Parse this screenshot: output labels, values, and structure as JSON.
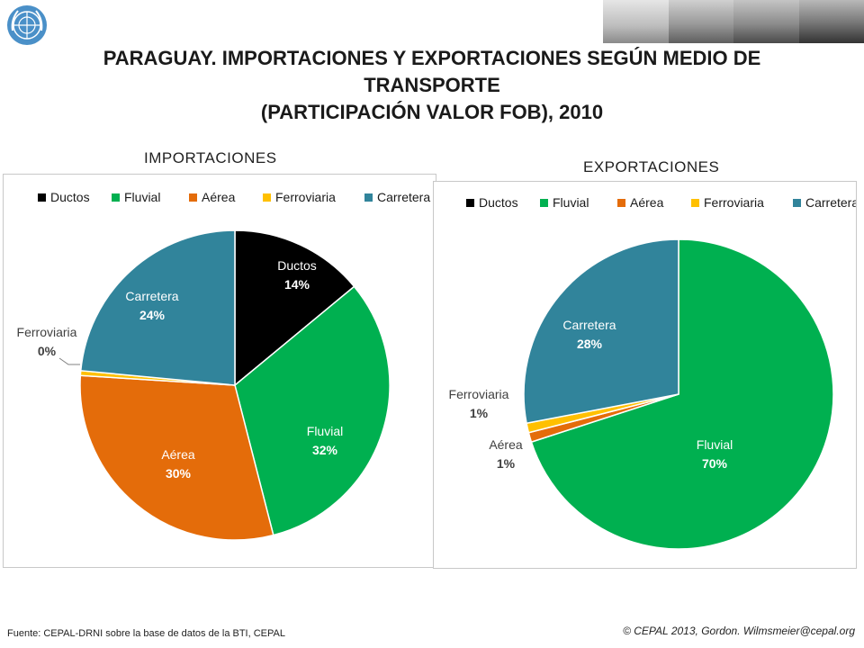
{
  "header": {
    "title_line1": "PARAGUAY. IMPORTACIONES  Y EXPORTACIONES SEGÚN MEDIO DE",
    "title_line2": "TRANSPORTE",
    "title_line3": "(PARTICIPACIÓN VALOR FOB), 2010"
  },
  "colors": {
    "Ductos": "#000000",
    "Fluvial": "#00b050",
    "Aérea": "#e46c0a",
    "Ferroviaria": "#ffc000",
    "Carretera": "#31849b"
  },
  "chart_data": [
    {
      "type": "pie",
      "title": "IMPORTACIONES",
      "legend_position": "top",
      "categories": [
        "Ductos",
        "Fluvial",
        "Aérea",
        "Ferroviaria",
        "Carretera"
      ],
      "values": [
        14,
        32,
        30,
        0.5,
        23.5
      ],
      "data_labels": [
        "14%",
        "32%",
        "30%",
        "0%",
        "24%"
      ]
    },
    {
      "type": "pie",
      "title": "EXPORTACIONES",
      "legend_position": "top",
      "categories": [
        "Ductos",
        "Fluvial",
        "Aérea",
        "Ferroviaria",
        "Carretera"
      ],
      "values": [
        0,
        70,
        1,
        1,
        28
      ],
      "data_labels": [
        "",
        "70%",
        "1%",
        "1%",
        "28%"
      ]
    }
  ],
  "footer": {
    "source": "Fuente: CEPAL-DRNI sobre la base de datos de la BTI, CEPAL",
    "copyright": "© CEPAL 2013, Gordon. Wilmsmeier@cepal.org"
  }
}
